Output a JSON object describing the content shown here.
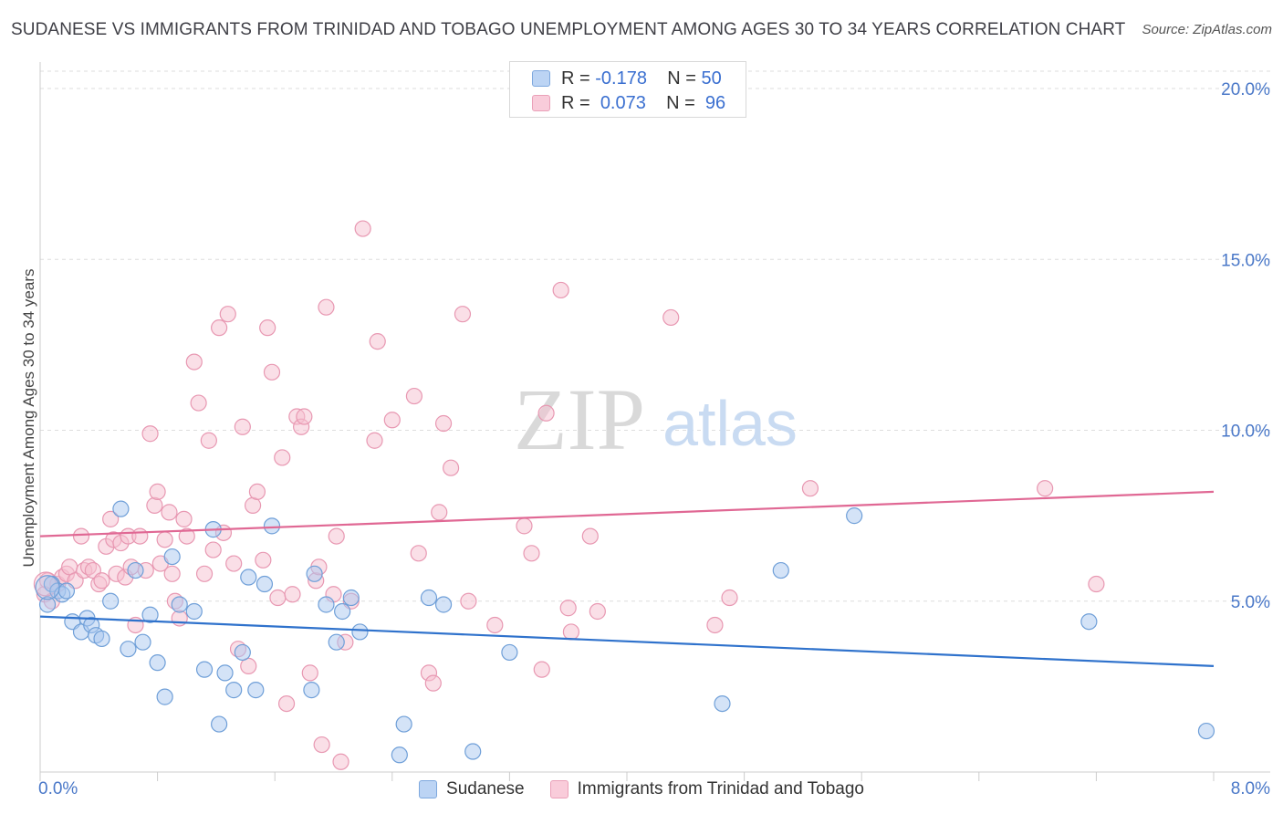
{
  "header": {
    "title": "SUDANESE VS IMMIGRANTS FROM TRINIDAD AND TOBAGO UNEMPLOYMENT AMONG AGES 30 TO 34 YEARS CORRELATION CHART",
    "source": "Source: ZipAtlas.com"
  },
  "watermark": {
    "zip": "ZIP",
    "atlas": "atlas"
  },
  "legend_top": {
    "rows": [
      {
        "r_label": "R =",
        "r_value": "-0.178",
        "n_label": "N =",
        "n_value": "50"
      },
      {
        "r_label": "R =",
        "r_value": "0.073",
        "n_label": "N =",
        "n_value": "96"
      }
    ]
  },
  "colors": {
    "blue": "#a9c8ef",
    "blue_stroke": "#6f9fd8",
    "blue_line": "#2f72cc",
    "pink": "#f6c0d0",
    "pink_stroke": "#e898b2",
    "pink_line": "#e06894",
    "grid": "#dddddd",
    "axis": "#cccccc"
  },
  "chart_data": {
    "type": "scatter",
    "title": "SUDANESE VS IMMIGRANTS FROM TRINIDAD AND TOBAGO UNEMPLOYMENT AMONG AGES 30 TO 34 YEARS CORRELATION CHART",
    "xlabel": "",
    "ylabel": "Unemployment Among Ages 30 to 34 years",
    "xlim": [
      0,
      8
    ],
    "ylim": [
      0,
      20.5
    ],
    "x_tick_labels": [
      "0.0%",
      "8.0%"
    ],
    "y_ticks": [
      5,
      10,
      15,
      20
    ],
    "y_tick_labels": [
      "5.0%",
      "10.0%",
      "15.0%",
      "20.0%"
    ],
    "grid": true,
    "legend_position": "top-center",
    "series": [
      {
        "name": "Sudanese",
        "r": -0.178,
        "n": 50,
        "trend": [
          [
            0,
            4.55
          ],
          [
            8,
            3.1
          ]
        ],
        "points": [
          [
            0.05,
            4.9
          ],
          [
            0.08,
            5.5
          ],
          [
            0.12,
            5.3
          ],
          [
            0.15,
            5.2
          ],
          [
            0.22,
            4.4
          ],
          [
            0.28,
            4.1
          ],
          [
            0.32,
            4.5
          ],
          [
            0.35,
            4.3
          ],
          [
            0.38,
            4.0
          ],
          [
            0.42,
            3.9
          ],
          [
            0.48,
            5.0
          ],
          [
            0.55,
            7.7
          ],
          [
            0.6,
            3.6
          ],
          [
            0.65,
            5.9
          ],
          [
            0.7,
            3.8
          ],
          [
            0.75,
            4.6
          ],
          [
            0.8,
            3.2
          ],
          [
            0.85,
            2.2
          ],
          [
            0.9,
            6.3
          ],
          [
            0.95,
            4.9
          ],
          [
            1.05,
            4.7
          ],
          [
            1.12,
            3.0
          ],
          [
            1.18,
            7.1
          ],
          [
            1.22,
            1.4
          ],
          [
            1.26,
            2.9
          ],
          [
            1.32,
            2.4
          ],
          [
            1.38,
            3.5
          ],
          [
            1.42,
            5.7
          ],
          [
            1.47,
            2.4
          ],
          [
            1.53,
            5.5
          ],
          [
            1.58,
            7.2
          ],
          [
            1.85,
            2.4
          ],
          [
            1.87,
            5.8
          ],
          [
            1.95,
            4.9
          ],
          [
            2.02,
            3.8
          ],
          [
            2.06,
            4.7
          ],
          [
            2.12,
            5.1
          ],
          [
            2.18,
            4.1
          ],
          [
            2.45,
            0.5
          ],
          [
            2.48,
            1.4
          ],
          [
            2.65,
            5.1
          ],
          [
            2.75,
            4.9
          ],
          [
            2.95,
            0.6
          ],
          [
            3.2,
            3.5
          ],
          [
            4.65,
            2.0
          ],
          [
            5.05,
            5.9
          ],
          [
            5.55,
            7.5
          ],
          [
            7.15,
            4.4
          ],
          [
            7.95,
            1.2
          ],
          [
            0.18,
            5.3
          ]
        ]
      },
      {
        "name": "Immigrants from Trinidad and Tobago",
        "r": 0.073,
        "n": 96,
        "trend": [
          [
            0,
            6.9
          ],
          [
            8,
            8.2
          ]
        ],
        "points": [
          [
            0.03,
            5.2
          ],
          [
            0.05,
            5.6
          ],
          [
            0.08,
            5.0
          ],
          [
            0.12,
            5.5
          ],
          [
            0.15,
            5.7
          ],
          [
            0.18,
            5.8
          ],
          [
            0.2,
            6.0
          ],
          [
            0.24,
            5.6
          ],
          [
            0.28,
            6.9
          ],
          [
            0.3,
            5.9
          ],
          [
            0.33,
            6.0
          ],
          [
            0.36,
            5.9
          ],
          [
            0.4,
            5.5
          ],
          [
            0.42,
            5.6
          ],
          [
            0.45,
            6.6
          ],
          [
            0.48,
            7.4
          ],
          [
            0.5,
            6.8
          ],
          [
            0.52,
            5.8
          ],
          [
            0.55,
            6.7
          ],
          [
            0.58,
            5.7
          ],
          [
            0.6,
            6.9
          ],
          [
            0.62,
            6.0
          ],
          [
            0.65,
            4.3
          ],
          [
            0.68,
            6.9
          ],
          [
            0.72,
            5.9
          ],
          [
            0.75,
            9.9
          ],
          [
            0.78,
            7.8
          ],
          [
            0.8,
            8.2
          ],
          [
            0.82,
            6.1
          ],
          [
            0.85,
            6.8
          ],
          [
            0.88,
            7.6
          ],
          [
            0.9,
            5.8
          ],
          [
            0.92,
            5.0
          ],
          [
            0.95,
            4.5
          ],
          [
            0.98,
            7.4
          ],
          [
            1.0,
            6.9
          ],
          [
            1.05,
            12.0
          ],
          [
            1.08,
            10.8
          ],
          [
            1.12,
            5.8
          ],
          [
            1.15,
            9.7
          ],
          [
            1.18,
            6.5
          ],
          [
            1.22,
            13.0
          ],
          [
            1.25,
            7.0
          ],
          [
            1.28,
            13.4
          ],
          [
            1.32,
            6.1
          ],
          [
            1.35,
            3.6
          ],
          [
            1.38,
            10.1
          ],
          [
            1.42,
            3.1
          ],
          [
            1.45,
            7.8
          ],
          [
            1.48,
            8.2
          ],
          [
            1.52,
            6.2
          ],
          [
            1.55,
            13.0
          ],
          [
            1.58,
            11.7
          ],
          [
            1.62,
            5.1
          ],
          [
            1.65,
            9.2
          ],
          [
            1.68,
            2.0
          ],
          [
            1.72,
            5.2
          ],
          [
            1.75,
            10.4
          ],
          [
            1.78,
            10.1
          ],
          [
            1.8,
            10.4
          ],
          [
            1.84,
            2.9
          ],
          [
            1.88,
            5.6
          ],
          [
            1.9,
            6.0
          ],
          [
            1.92,
            0.8
          ],
          [
            1.95,
            13.6
          ],
          [
            2.0,
            5.2
          ],
          [
            2.02,
            6.9
          ],
          [
            2.05,
            0.3
          ],
          [
            2.08,
            3.8
          ],
          [
            2.12,
            5.0
          ],
          [
            2.2,
            15.9
          ],
          [
            2.28,
            9.7
          ],
          [
            2.3,
            12.6
          ],
          [
            2.4,
            10.3
          ],
          [
            2.55,
            11.0
          ],
          [
            2.58,
            6.4
          ],
          [
            2.65,
            2.9
          ],
          [
            2.68,
            2.6
          ],
          [
            2.72,
            7.6
          ],
          [
            2.75,
            10.2
          ],
          [
            2.8,
            8.9
          ],
          [
            2.88,
            13.4
          ],
          [
            2.92,
            5.0
          ],
          [
            3.1,
            4.3
          ],
          [
            3.3,
            7.2
          ],
          [
            3.35,
            6.4
          ],
          [
            3.42,
            3.0
          ],
          [
            3.45,
            10.5
          ],
          [
            3.55,
            14.1
          ],
          [
            3.6,
            4.8
          ],
          [
            3.62,
            4.1
          ],
          [
            3.75,
            6.9
          ],
          [
            3.8,
            4.7
          ],
          [
            4.3,
            13.3
          ],
          [
            4.6,
            4.3
          ],
          [
            4.7,
            5.1
          ]
        ]
      }
    ],
    "extra_points_pink": [
      [
        5.25,
        8.3
      ],
      [
        6.85,
        8.3
      ],
      [
        7.2,
        5.5
      ]
    ]
  },
  "legend_bottom": {
    "items": [
      {
        "label": "Sudanese"
      },
      {
        "label": "Immigrants from Trinidad and Tobago"
      }
    ]
  }
}
